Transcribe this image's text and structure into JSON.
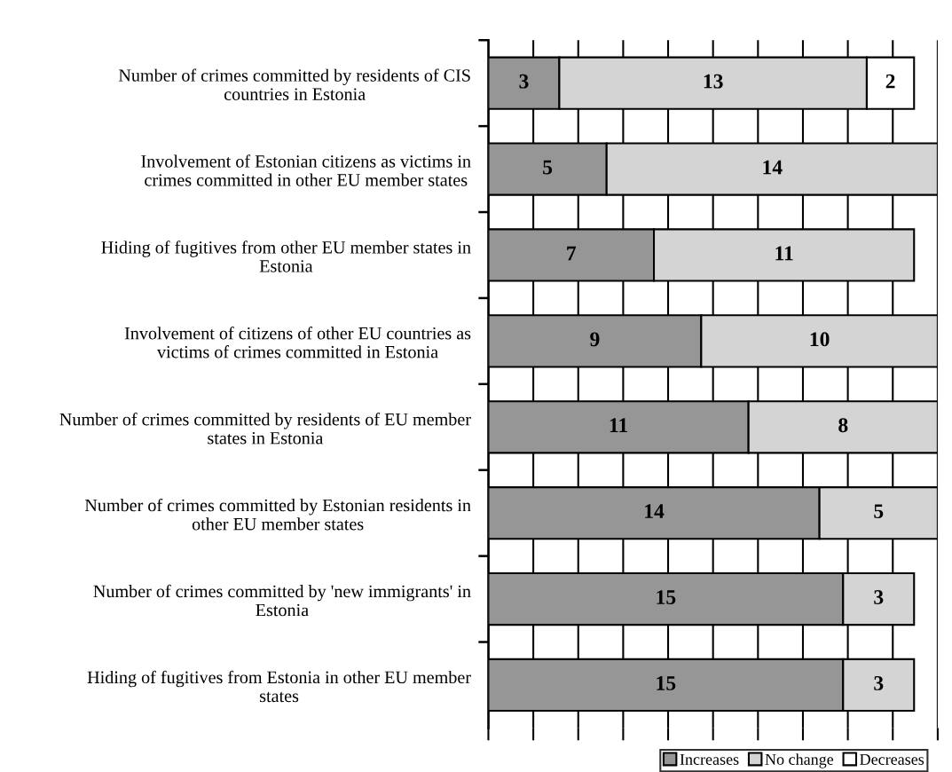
{
  "chart_data": {
    "type": "bar",
    "orientation": "horizontal",
    "stacked": true,
    "categories": [
      "Number of crimes committed by residents of CIS countries in Estonia",
      "Involvement of Estonian citizens as victims in crimes committed in other EU member states",
      "Hiding of fugitives from other EU member states in Estonia",
      "Involvement of citizens of other EU countries as victims of crimes committed in Estonia",
      "Number of crimes committed by residents of EU member states in Estonia",
      "Number of crimes committed by Estonian residents in other EU member states",
      "Number of crimes committed by 'new immigrants' in Estonia",
      "Hiding of fugitives from Estonia in other EU member states"
    ],
    "series": [
      {
        "name": "Increases",
        "color": "#969696",
        "values": [
          3,
          5,
          7,
          9,
          11,
          14,
          15,
          15
        ]
      },
      {
        "name": "No change",
        "color": "#d4d4d4",
        "values": [
          13,
          14,
          11,
          10,
          8,
          5,
          3,
          3
        ]
      },
      {
        "name": "Decreases",
        "color": "#ffffff",
        "values": [
          2,
          null,
          null,
          null,
          null,
          null,
          null,
          null
        ]
      }
    ],
    "xlim": [
      0,
      19
    ],
    "xticks": [
      {
        "value": 0,
        "label": null
      },
      {
        "value": 1.9,
        "label": null
      },
      {
        "value": 3.8,
        "label": null
      },
      {
        "value": 5.7,
        "label": null
      },
      {
        "value": 7.6,
        "label": null
      },
      {
        "value": 9.5,
        "label": null
      },
      {
        "value": 11.4,
        "label": null
      },
      {
        "value": 13.3,
        "label": null
      },
      {
        "value": 15.2,
        "label": null
      },
      {
        "value": 17.1,
        "label": null
      },
      {
        "value": 19,
        "label": null
      }
    ],
    "tick_labels": "y",
    "grid": "x",
    "data_labels": true,
    "legend": "bottom"
  }
}
